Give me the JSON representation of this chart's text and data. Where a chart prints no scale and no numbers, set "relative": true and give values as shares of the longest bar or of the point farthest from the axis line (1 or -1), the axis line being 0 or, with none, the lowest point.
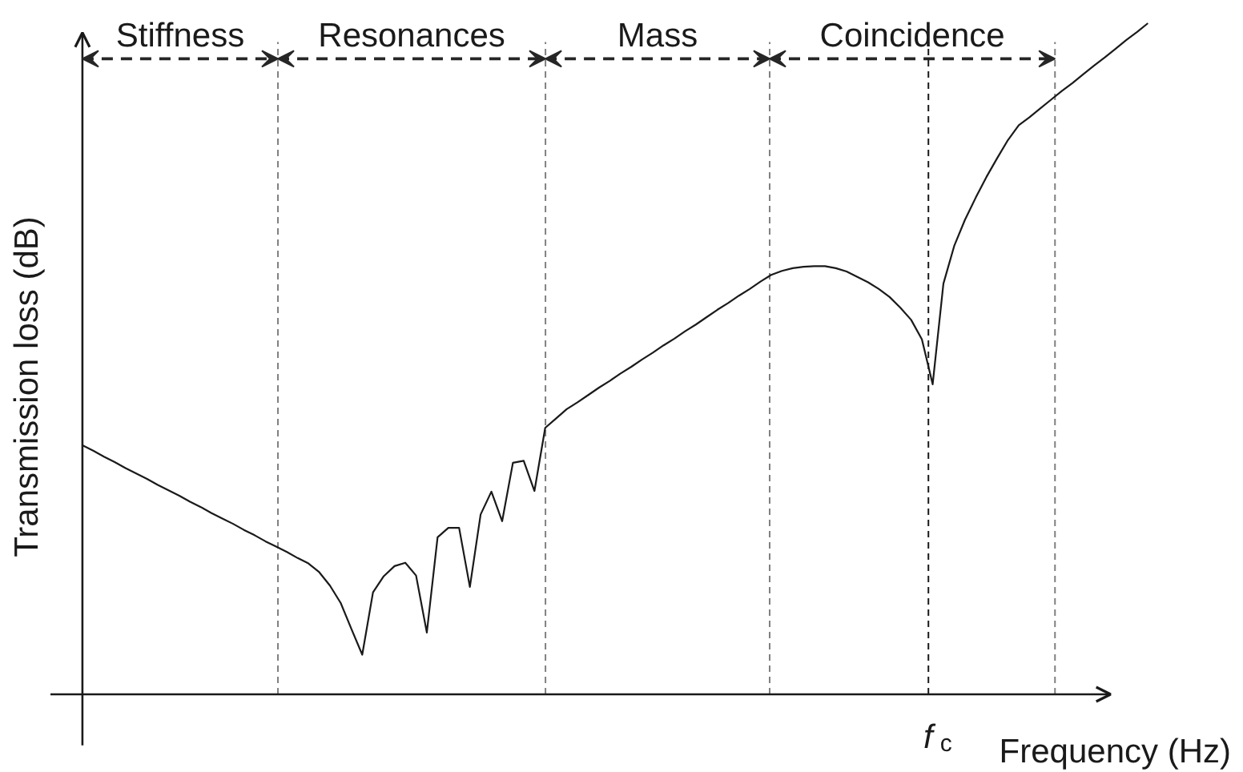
{
  "chart_data": {
    "type": "line",
    "relative": true,
    "xlabel": "Frequency (Hz)",
    "ylabel": "Transmission loss (dB)",
    "marker": "none",
    "line_style": "solid",
    "color": "#1a1a1a",
    "categories": [
      null,
      null,
      null,
      null,
      null,
      null,
      null,
      null,
      null,
      null,
      null,
      null,
      null,
      null,
      null,
      null,
      null,
      null,
      null,
      null,
      null,
      null,
      null,
      null,
      null,
      null,
      null,
      null,
      null,
      null,
      null,
      null,
      null,
      null,
      null,
      null,
      null,
      null,
      null,
      null,
      null,
      null,
      null,
      null,
      null,
      null,
      null,
      null,
      null,
      null,
      null,
      null,
      null,
      null,
      null,
      null,
      null,
      null,
      null,
      null,
      null,
      null,
      null,
      null,
      null,
      null,
      null,
      null,
      null,
      null,
      null,
      null,
      null,
      null,
      null,
      null,
      null,
      null,
      null,
      null,
      null,
      null,
      null,
      null,
      null,
      null,
      null,
      null,
      null,
      null,
      null,
      null,
      null,
      null,
      null,
      null,
      null,
      null,
      null,
      null
    ],
    "values": [
      0.371,
      0.363,
      0.354,
      0.346,
      0.337,
      0.329,
      0.321,
      0.312,
      0.304,
      0.296,
      0.287,
      0.279,
      0.27,
      0.262,
      0.254,
      0.245,
      0.237,
      0.228,
      0.22,
      0.212,
      0.203,
      0.195,
      0.182,
      0.162,
      0.136,
      0.097,
      0.059,
      0.152,
      0.176,
      0.191,
      0.196,
      0.177,
      0.092,
      0.234,
      0.248,
      0.248,
      0.16,
      0.268,
      0.302,
      0.258,
      0.345,
      0.348,
      0.303,
      0.397,
      0.411,
      0.425,
      0.435,
      0.446,
      0.457,
      0.467,
      0.478,
      0.488,
      0.499,
      0.509,
      0.52,
      0.53,
      0.541,
      0.551,
      0.562,
      0.573,
      0.583,
      0.594,
      0.604,
      0.615,
      0.625,
      0.631,
      0.635,
      0.637,
      0.638,
      0.638,
      0.635,
      0.63,
      0.622,
      0.614,
      0.604,
      0.592,
      0.576,
      0.558,
      0.529,
      0.462,
      0.612,
      0.668,
      0.707,
      0.74,
      0.771,
      0.799,
      0.826,
      0.848,
      0.86,
      0.873,
      0.886,
      0.899,
      0.911,
      0.924,
      0.937,
      0.949,
      0.962,
      0.975,
      0.987,
      1.0
    ],
    "annotations": [
      "Stiffness",
      "Resonances",
      "Mass",
      "Coincidence",
      "f$_{c}$"
    ]
  }
}
